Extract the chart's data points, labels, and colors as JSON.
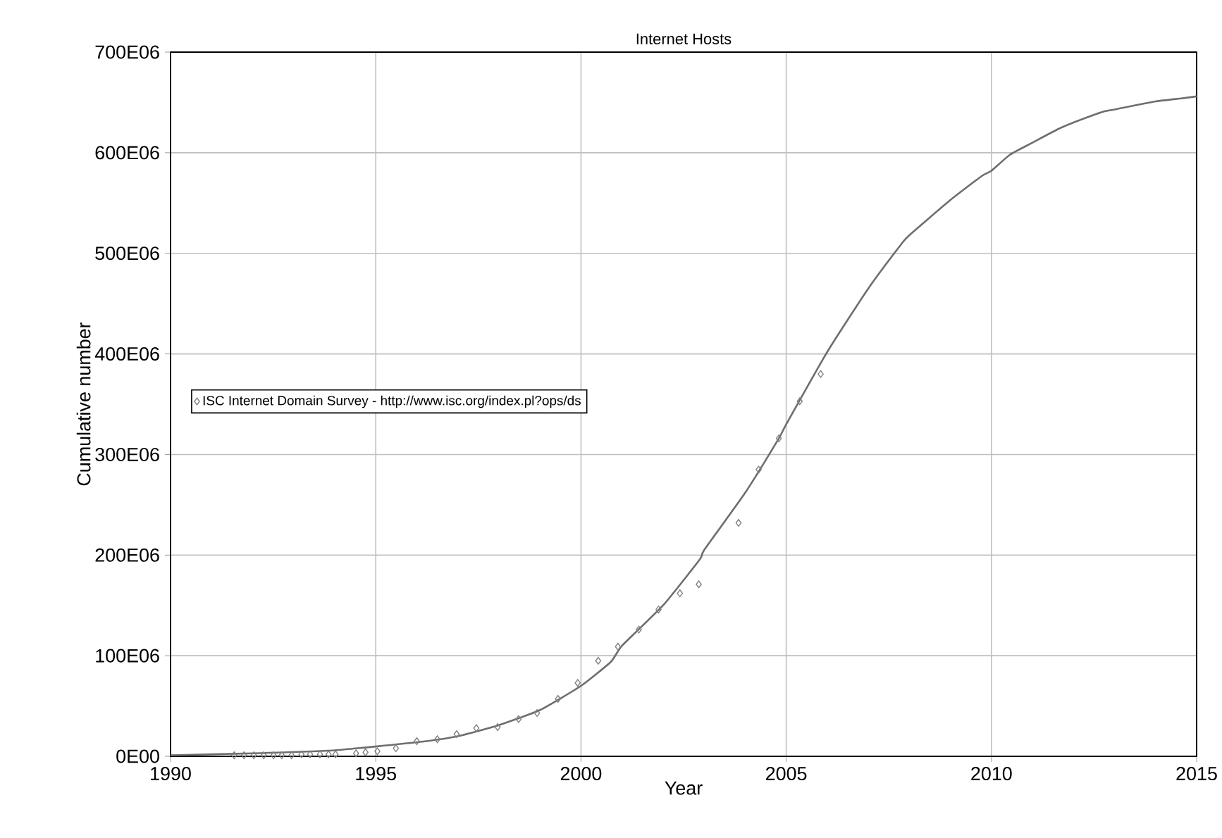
{
  "chart_data": {
    "type": "line",
    "title": "Internet Hosts",
    "xlabel": "Year",
    "ylabel": "Cumulative number",
    "xlim": [
      1990,
      2015
    ],
    "xticks": [
      1990,
      1995,
      2000,
      2005,
      2010,
      2015
    ],
    "ylim": [
      0,
      700000000
    ],
    "yticks": [
      {
        "value": 0,
        "label": "0E00"
      },
      {
        "value": 100000000,
        "label": "100E06"
      },
      {
        "value": 200000000,
        "label": "200E06"
      },
      {
        "value": 300000000,
        "label": "300E06"
      },
      {
        "value": 400000000,
        "label": "400E06"
      },
      {
        "value": 500000000,
        "label": "500E06"
      },
      {
        "value": 600000000,
        "label": "600E06"
      },
      {
        "value": 700000000,
        "label": "700E06"
      }
    ],
    "grid": true,
    "legend": "left",
    "series": [
      {
        "type": "scatter",
        "name": "ISC Internet Domain Survey - http://www.isc.org/index.pl?ops/ds",
        "color": "#808080",
        "marker": "diamond",
        "x": [
          1991.55,
          1991.79,
          1992.03,
          1992.27,
          1992.51,
          1992.71,
          1992.95,
          1993.19,
          1993.4,
          1993.64,
          1993.85,
          1994.02,
          1994.52,
          1994.75,
          1995.04,
          1995.49,
          1996.0,
          1996.5,
          1996.97,
          1997.45,
          1997.97,
          1998.48,
          1998.93,
          1999.44,
          1999.92,
          2000.42,
          2000.9,
          2001.41,
          2001.89,
          2002.41,
          2002.87,
          2003.84,
          2004.33,
          2004.82,
          2005.33,
          2005.84
        ],
        "values": [
          1000000,
          1000000,
          1000000,
          1000000,
          1000000,
          1000000,
          1000000,
          2000000,
          2000000,
          2000000,
          2000000,
          2000000,
          3000000,
          4000000,
          5000000,
          8000000,
          15000000,
          17000000,
          22000000,
          28000000,
          29000000,
          37000000,
          43000000,
          57000000,
          73000000,
          95000000,
          109000000,
          126000000,
          146000000,
          162000000,
          171000000,
          232000000,
          285000000,
          316000000,
          353000000,
          380000000
        ]
      },
      {
        "color": "#6e6e6e",
        "marker": "none",
        "x": [
          1990,
          1992,
          1994,
          1996,
          1997,
          1998,
          1999,
          2000,
          2000.73,
          2001,
          2002,
          2002.9,
          2003,
          2004,
          2004.82,
          2005,
          2006,
          2007,
          2007.82,
          2008,
          2009,
          2009.77,
          2010,
          2010.45,
          2011,
          2011.6,
          2012,
          2012.74,
          2013,
          2014,
          2014.63,
          2015
        ],
        "values": [
          1000000,
          3000000,
          6000000,
          14000000,
          20000000,
          31000000,
          46000000,
          70000000,
          94000000,
          110000000,
          150000000,
          196000000,
          205000000,
          262000000,
          316000000,
          330000000,
          402000000,
          465000000,
          510000000,
          518000000,
          553000000,
          577000000,
          582000000,
          598000000,
          610000000,
          623000000,
          630000000,
          641000000,
          643000000,
          651000000,
          654000000,
          656000000
        ]
      }
    ]
  }
}
